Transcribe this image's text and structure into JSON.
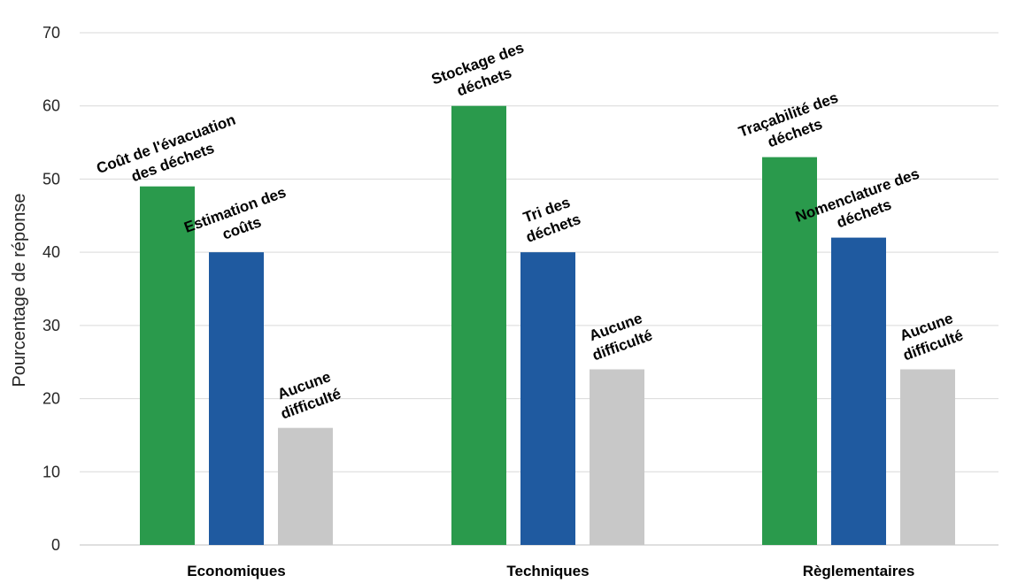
{
  "chart_data": {
    "type": "bar",
    "ylabel": "Pourcentage de réponse",
    "ylim": [
      0,
      70
    ],
    "yticks": [
      0,
      10,
      20,
      30,
      40,
      50,
      60,
      70
    ],
    "grid": true,
    "legend": "none",
    "categories": [
      "Economiques",
      "Techniques",
      "Règlementaires"
    ],
    "groups": [
      {
        "category": "Economiques",
        "bars": [
          {
            "label": [
              "Coût de l'évacuation",
              "des déchets"
            ],
            "value": 49,
            "color": "#2a9a4c"
          },
          {
            "label": [
              "Estimation des",
              "coûts"
            ],
            "value": 40,
            "color": "#1f5aa0"
          },
          {
            "label": [
              "Aucune",
              "difficulté"
            ],
            "value": 16,
            "color": "#c8c8c8"
          }
        ]
      },
      {
        "category": "Techniques",
        "bars": [
          {
            "label": [
              "Stockage des",
              "déchets"
            ],
            "value": 60,
            "color": "#2a9a4c"
          },
          {
            "label": [
              "Tri des",
              "déchets"
            ],
            "value": 40,
            "color": "#1f5aa0"
          },
          {
            "label": [
              "Aucune",
              "difficulté"
            ],
            "value": 24,
            "color": "#c8c8c8"
          }
        ]
      },
      {
        "category": "Règlementaires",
        "bars": [
          {
            "label": [
              "Traçabilité des",
              "déchets"
            ],
            "value": 53,
            "color": "#2a9a4c"
          },
          {
            "label": [
              "Nomenclature des",
              "déchets"
            ],
            "value": 42,
            "color": "#1f5aa0"
          },
          {
            "label": [
              "Aucune",
              "difficulté"
            ],
            "value": 24,
            "color": "#c8c8c8"
          }
        ]
      }
    ]
  }
}
